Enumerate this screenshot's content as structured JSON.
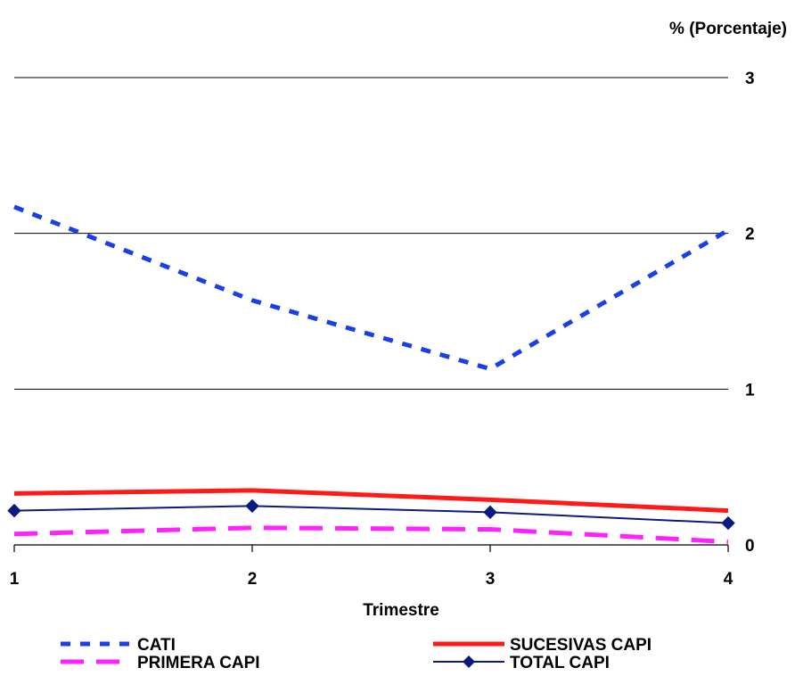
{
  "chart_data": {
    "type": "line",
    "title": "",
    "xlabel": "Trimestre",
    "ylabel": "% (Porcentaje)",
    "x": [
      1,
      2,
      3,
      4
    ],
    "xticks": [
      "1",
      "2",
      "3",
      "4"
    ],
    "yticks": [
      "0",
      "1",
      "2",
      "3"
    ],
    "ylim": [
      0,
      3
    ],
    "xlim": [
      1,
      4
    ],
    "y_axis_side": "right",
    "grid": "horizontal",
    "legend_position": "bottom",
    "series": [
      {
        "name": "CATI",
        "values": [
          2.17,
          1.57,
          1.13,
          2.02
        ],
        "color": "#1a3fe8",
        "style": "dotted",
        "marker": "none"
      },
      {
        "name": "SUCESIVAS CAPI",
        "values": [
          0.33,
          0.35,
          0.29,
          0.22
        ],
        "color": "#ff1a1a",
        "style": "solid",
        "marker": "none"
      },
      {
        "name": "PRIMERA CAPI",
        "values": [
          0.07,
          0.11,
          0.1,
          0.02
        ],
        "color": "#ff22ff",
        "style": "dashed",
        "marker": "none"
      },
      {
        "name": "TOTAL CAPI",
        "values": [
          0.22,
          0.25,
          0.21,
          0.14
        ],
        "color": "#0a1a80",
        "style": "solid",
        "marker": "diamond"
      }
    ]
  }
}
